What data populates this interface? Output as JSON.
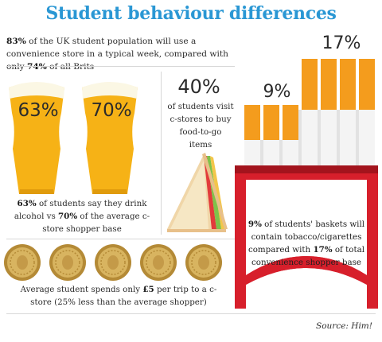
{
  "title": "Student behaviour differences",
  "intro": {
    "strong1": "83%",
    "text1": " of the UK student population will use a convenience store in a typical week, compared with only ",
    "strong2": "74%",
    "text2": " of all Brits"
  },
  "beer": {
    "left_value": "63%",
    "right_value": "70%",
    "strong1": "63%",
    "text1": " of students say they drink alcohol vs ",
    "strong2": "70%",
    "text2": " of the average c-store shopper base"
  },
  "food": {
    "value": "40%",
    "text": "of students visit c-stores to buy food-to-go items"
  },
  "tobacco": {
    "value_low": "9%",
    "value_high": "17%",
    "strong1": "9%",
    "text1": " of students' baskets will contain tobacco/cigarettes compared with ",
    "strong2": "17%",
    "text2": " of total convenience shopper base"
  },
  "spend": {
    "text1": "Average student spends only ",
    "strong1": "£5",
    "text2": " per trip to a c-store (25% less than the average shopper)"
  },
  "source": "Source: Him!",
  "colors": {
    "title": "#2a97d4",
    "beer": "#f6b216",
    "foam": "#fbf7e4",
    "cigarette_filter": "#f49c1d",
    "pack_red": "#d71f2b",
    "coin": "#c9a14a"
  }
}
